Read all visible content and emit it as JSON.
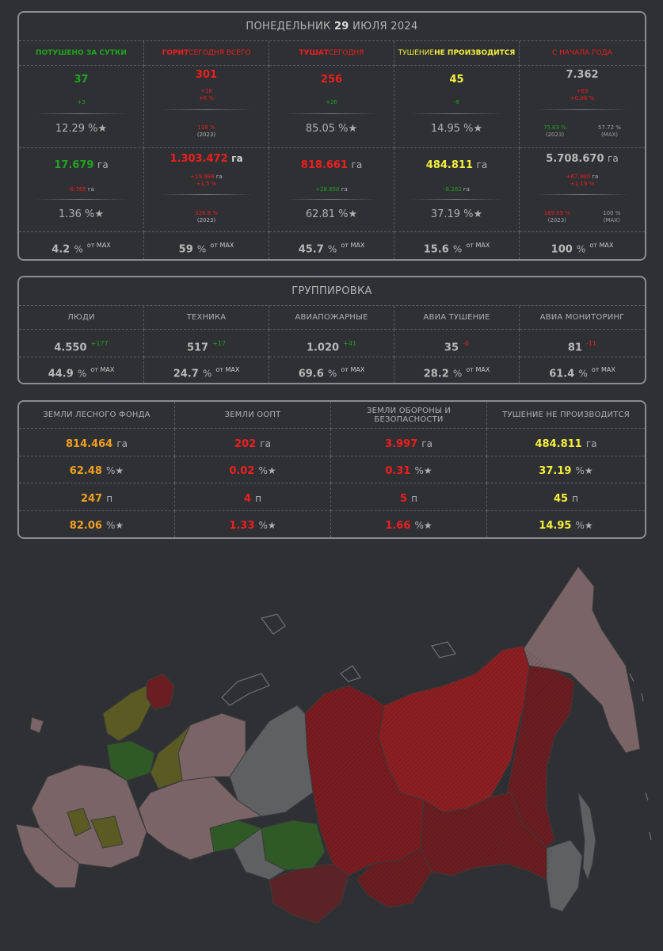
{
  "header": {
    "weekday": "ПОНЕДЕЛЬНИК",
    "day": "29",
    "month_year": "ИЮЛЯ 2024"
  },
  "stats": {
    "columns": [
      {
        "label_a": "ПОТУШЕНО ЗА СУТКИ",
        "label_b": ""
      },
      {
        "label_a": "ГОРИТ",
        "label_b": " СЕГОДНЯ ВСЕГО"
      },
      {
        "label_a": "ТУШАТ",
        "label_b": " СЕГОДНЯ"
      },
      {
        "label_a": "ТУШЕНИЕ ",
        "label_b": "НЕ ПРОИЗВОДИТСЯ"
      },
      {
        "label_a": "С НАЧАЛА ГОДА",
        "label_b": ""
      }
    ],
    "row1": [
      {
        "value": "37",
        "d1": "+3",
        "d2": "",
        "pct": "12.29 %★"
      },
      {
        "value": "301",
        "d1": "+16",
        "d2": "+6 %",
        "ref": "118 %",
        "ref_year": "(2023)"
      },
      {
        "value": "256",
        "d1": "+26",
        "d2": "",
        "pct": "85.05 %★"
      },
      {
        "value": "45",
        "d1": "-8",
        "d2": "",
        "pct": "14.95 %★"
      },
      {
        "value": "7.362",
        "d1": "+63",
        "d2": "+0.86 %",
        "ref_a": "75.63 %",
        "ref_a_sub": "(2023)",
        "ref_b": "57.72 %",
        "ref_b_sub": "(MAX)"
      }
    ],
    "row2": [
      {
        "value": "17.679",
        "unit": "га",
        "d1": "-6.785",
        "d1_unit": "га",
        "d2": "",
        "pct": "1.36 %★"
      },
      {
        "value": "1.303.472",
        "unit": "га",
        "d1": "+19.999",
        "d1_unit": "га",
        "d2": "+1.5 %",
        "ref": "326.8 %",
        "ref_year": "(2023)"
      },
      {
        "value": "818.661",
        "unit": "га",
        "d1": "+28.650",
        "d1_unit": "га",
        "d2": "",
        "pct": "62.81 %★"
      },
      {
        "value": "484.811",
        "unit": "га",
        "d1": "-8.282",
        "d1_unit": "га",
        "d2": "",
        "pct": "37.19 %★"
      },
      {
        "value": "5.708.670",
        "unit": "га",
        "d1": "+67.900",
        "d1_unit": "га",
        "d2": "+1.19 %",
        "ref_a": "169.09 %",
        "ref_a_sub": "(2023)",
        "ref_b": "100 %",
        "ref_b_sub": "(MAX)"
      }
    ],
    "row3": [
      {
        "value": "4.2",
        "suffix": "%",
        "of_max": "от MAX"
      },
      {
        "value": "59",
        "suffix": "%",
        "of_max": "от MAX"
      },
      {
        "value": "45.7",
        "suffix": "%",
        "of_max": "от MAX"
      },
      {
        "value": "15.6",
        "suffix": "%",
        "of_max": "от MAX"
      },
      {
        "value": "100",
        "suffix": "%",
        "of_max": "от MAX"
      }
    ]
  },
  "grouping": {
    "title": "ГРУППИРОВКА",
    "columns": [
      "ЛЮДИ",
      "ТЕХНИКА",
      "АВИАПОЖАРНЫЕ",
      "АВИА ТУШЕНИЕ",
      "АВИА МОНИТОРИНГ"
    ],
    "values": [
      {
        "value": "4.550",
        "delta": "+177",
        "delta_color": "g"
      },
      {
        "value": "517",
        "delta": "+17",
        "delta_color": "g"
      },
      {
        "value": "1.020",
        "delta": "+41",
        "delta_color": "g"
      },
      {
        "value": "35",
        "delta": "-6",
        "delta_color": "r"
      },
      {
        "value": "81",
        "delta": "-11",
        "delta_color": "r"
      }
    ],
    "pcts": [
      {
        "value": "44.9",
        "suffix": "%",
        "of_max": "от MAX"
      },
      {
        "value": "24.7",
        "suffix": "%",
        "of_max": "от MAX"
      },
      {
        "value": "69.6",
        "suffix": "%",
        "of_max": "от MAX"
      },
      {
        "value": "28.2",
        "suffix": "%",
        "of_max": "от MAX"
      },
      {
        "value": "61.4",
        "suffix": "%",
        "of_max": "от MAX"
      }
    ]
  },
  "lands": {
    "columns": [
      "ЗЕМЛИ ЛЕСНОГО ФОНДА",
      "ЗЕМЛИ ООПТ",
      "ЗЕМЛИ ОБОРОНЫ И БЕЗОПАСНОСТИ",
      "ТУШЕНИЕ НЕ ПРОИЗВОДИТСЯ"
    ],
    "area": [
      {
        "value": "814.464",
        "unit": "га",
        "color": "o"
      },
      {
        "value": "202",
        "unit": "га",
        "color": "r"
      },
      {
        "value": "3.997",
        "unit": "га",
        "color": "r"
      },
      {
        "value": "484.811",
        "unit": "га",
        "color": "y"
      }
    ],
    "area_pct": [
      {
        "value": "62.48",
        "suffix": "%★",
        "color": "o"
      },
      {
        "value": "0.02",
        "suffix": "%★",
        "color": "r"
      },
      {
        "value": "0.31",
        "suffix": "%★",
        "color": "r"
      },
      {
        "value": "37.19",
        "suffix": "%★",
        "color": "y"
      }
    ],
    "count": [
      {
        "value": "247",
        "unit": "п",
        "color": "o"
      },
      {
        "value": "4",
        "unit": "п",
        "color": "r"
      },
      {
        "value": "5",
        "unit": "п",
        "color": "r"
      },
      {
        "value": "45",
        "unit": "п",
        "color": "y"
      }
    ],
    "count_pct": [
      {
        "value": "82.06",
        "suffix": "%★",
        "color": "o"
      },
      {
        "value": "1.33",
        "suffix": "%★",
        "color": "r"
      },
      {
        "value": "1.66",
        "suffix": "%★",
        "color": "r"
      },
      {
        "value": "14.95",
        "suffix": "%★",
        "color": "y"
      }
    ]
  },
  "colors": {
    "green": "#1fa51f",
    "red": "#f01e1e",
    "yellow": "#f5f03c",
    "orange": "#f0a020",
    "region_red": "#8c1f22",
    "region_dark_red": "#6a1e21",
    "region_pink": "#7a6466",
    "region_grey": "#5f6062",
    "region_green": "#2f5a26",
    "region_olive": "#5a5a22"
  }
}
